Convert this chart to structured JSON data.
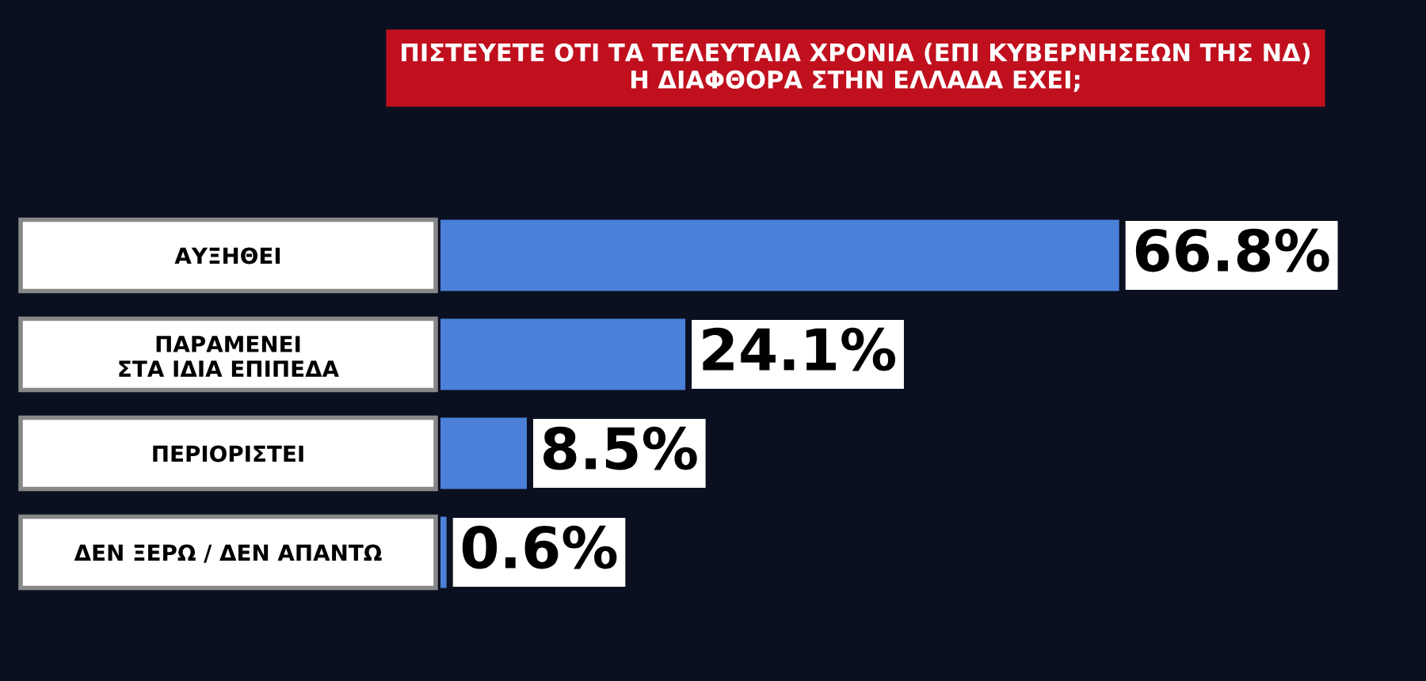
{
  "chart_data": {
    "type": "bar",
    "orientation": "horizontal",
    "title": "ΠΙΣΤΕΥΕΤΕ ΟΤΙ ΤΑ ΤΕΛΕΥΤΑΙΑ ΧΡΟΝΙΑ (ΕΠΙ ΚΥΒΕΡΝΗΣΕΩΝ ΤΗΣ ΝΔ)\nΗ ΔΙΑΦΘΟΡΑ ΣΤΗΝ ΕΛΛΑΔΑ ΕΧΕΙ;",
    "categories": [
      "ΑΥΞΗΘΕΙ",
      "ΠΑΡΑΜΕΝΕΙ\nΣΤΑ ΙΔΙΑ ΕΠΙΠΕΔΑ",
      "ΠΕΡΙΟΡΙΣΤΕΙ",
      "ΔΕΝ ΞΕΡΩ / ΔΕΝ ΑΠΑΝΤΩ"
    ],
    "values": [
      66.8,
      24.1,
      8.5,
      0.6
    ],
    "value_labels": [
      "66.8%",
      "24.1%",
      "8.5%",
      "0.6%"
    ],
    "color": "#4a80d8",
    "xlim": [
      0,
      97
    ],
    "tick_labels": "y",
    "grid": false,
    "legend": false
  }
}
